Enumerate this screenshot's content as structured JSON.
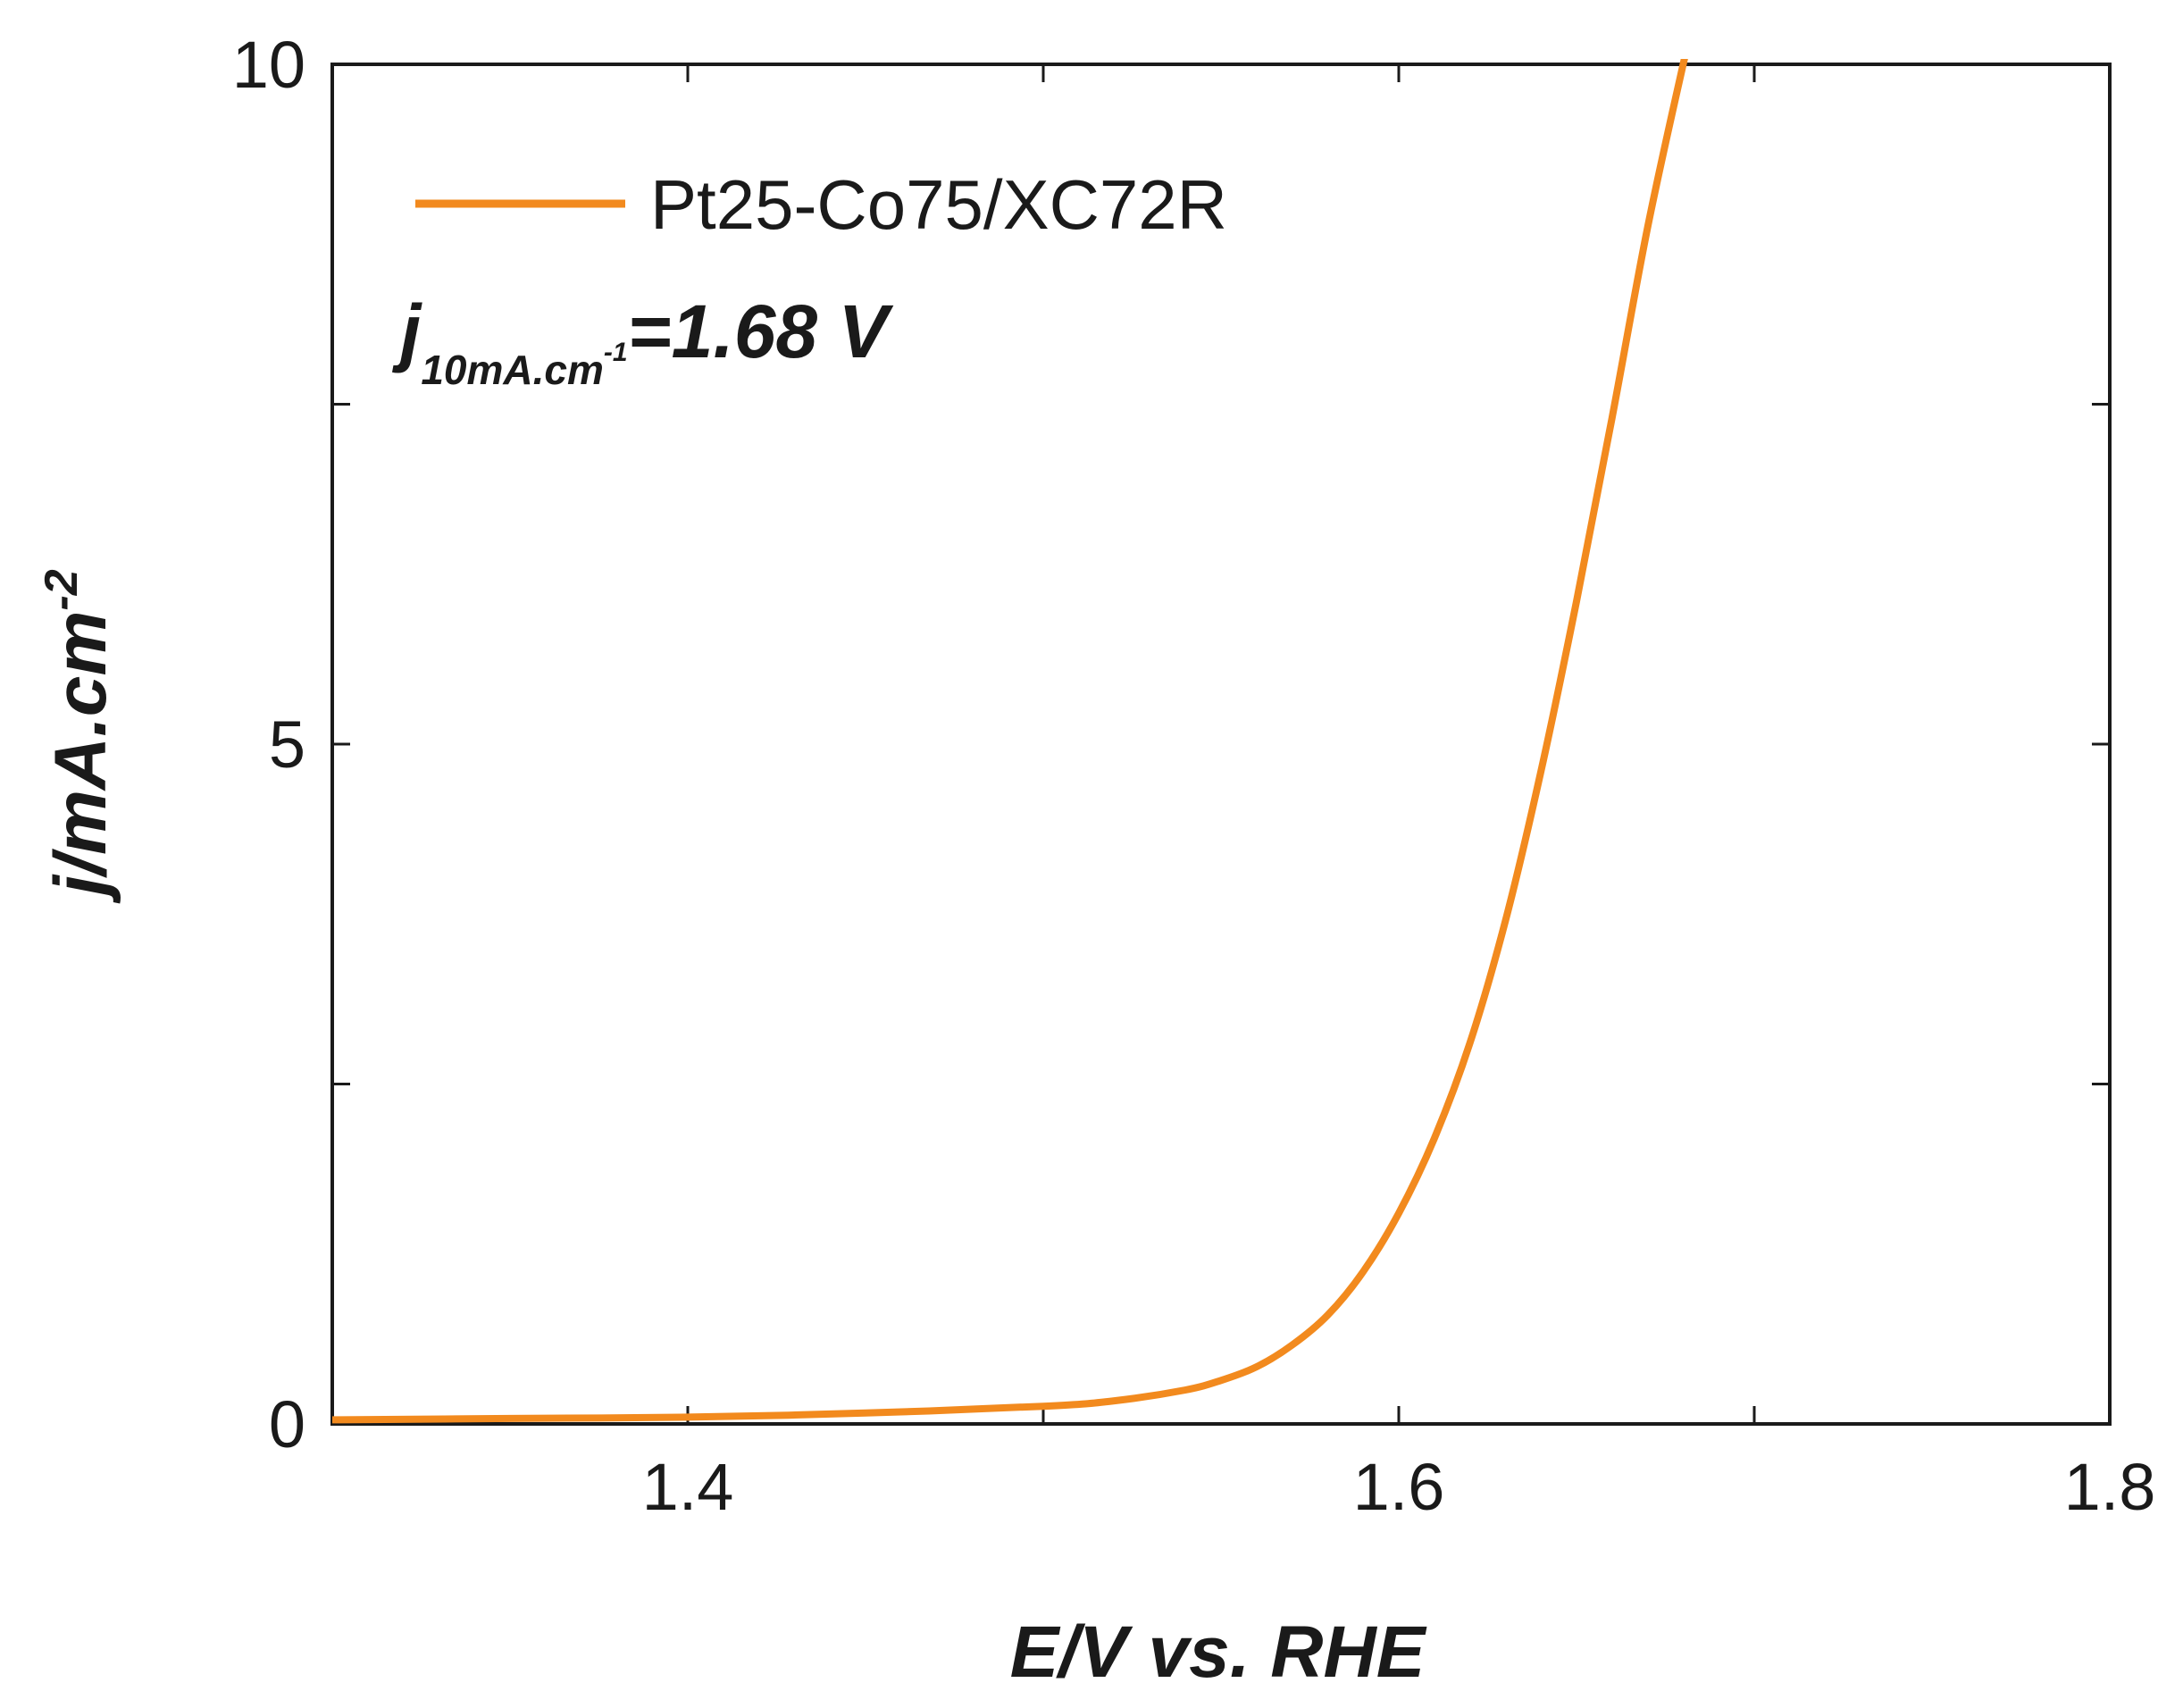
{
  "chart_data": {
    "type": "line",
    "title": "",
    "xlabel": "E/V vs. RHE",
    "ylabel": {
      "main": "j/mA.cm",
      "sup": "-2"
    },
    "xlim": [
      1.3,
      1.8
    ],
    "ylim": [
      0,
      10
    ],
    "x_ticks": [
      {
        "value": 1.4,
        "label": "1.4"
      },
      {
        "value": 1.6,
        "label": "1.6"
      },
      {
        "value": 1.8,
        "label": "1.8"
      }
    ],
    "x_minor_ticks": [
      1.5,
      1.7
    ],
    "y_ticks": [
      {
        "value": 0,
        "label": "0"
      },
      {
        "value": 5,
        "label": "5"
      },
      {
        "value": 10,
        "label": "10"
      }
    ],
    "y_minor_ticks": [
      2.5,
      7.5
    ],
    "grid": false,
    "legend_position": "top-left",
    "annotation": {
      "main": "j",
      "sub": "10mA.cm",
      "sub_sup": "-1",
      "value": "=1.68 V"
    },
    "series": [
      {
        "name": "Pt25-Co75/XC72R",
        "color": "#F28A1E",
        "x": [
          1.3,
          1.35,
          1.4,
          1.45,
          1.5,
          1.52,
          1.54,
          1.55,
          1.56,
          1.57,
          1.58,
          1.59,
          1.6,
          1.61,
          1.62,
          1.63,
          1.64,
          1.65,
          1.66,
          1.67,
          1.68,
          1.682
        ],
        "y": [
          0.03,
          0.04,
          0.05,
          0.08,
          0.13,
          0.17,
          0.25,
          0.32,
          0.42,
          0.58,
          0.8,
          1.12,
          1.55,
          2.1,
          2.8,
          3.7,
          4.8,
          6.05,
          7.4,
          8.8,
          10.0,
          10.2
        ]
      }
    ]
  }
}
